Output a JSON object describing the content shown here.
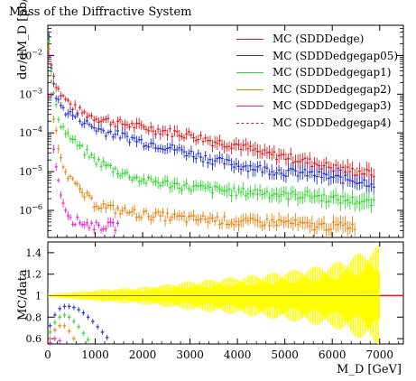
{
  "chart_data": [
    {
      "type": "scatter",
      "panel": "main",
      "title": "Mass of the Diffractive System",
      "ylabel": "dσ/dM_D [pb/GeV]",
      "xlabel": "",
      "xlim": [
        0,
        7500
      ],
      "ylim": [
        2e-07,
        0.06
      ],
      "yscale": "log",
      "yticks": [
        {
          "v": 0.01,
          "base": "10",
          "exp": "−2"
        },
        {
          "v": 0.001,
          "base": "10",
          "exp": "−3"
        },
        {
          "v": 0.0001,
          "base": "10",
          "exp": "−4"
        },
        {
          "v": 1e-05,
          "base": "10",
          "exp": "−5"
        },
        {
          "v": 1e-06,
          "base": "10",
          "exp": "−6"
        }
      ],
      "legend_position": "top-right",
      "series": [
        {
          "name": "MC (SDDDedge)",
          "color": "#e41a1c",
          "style": "solid",
          "x": [
            25,
            75,
            125,
            200,
            300,
            400,
            500,
            700,
            1000,
            1500,
            2000,
            2500,
            3000,
            3500,
            4000,
            4500,
            5000,
            5500,
            6000,
            6500,
            6900
          ],
          "y": [
            0.03,
            0.007,
            0.003,
            0.0015,
            0.0009,
            0.0007,
            0.0005,
            0.00035,
            0.00025,
            0.00018,
            0.00014,
            0.00011,
            9e-05,
            6e-05,
            5e-05,
            3e-05,
            2.5e-05,
            1.8e-05,
            1.3e-05,
            1e-05,
            9e-06
          ]
        },
        {
          "name": "MC (SDDDedgegap05)",
          "color": "#1f2ee0",
          "style": "solid",
          "x": [
            25,
            75,
            125,
            200,
            300,
            400,
            500,
            700,
            1000,
            1500,
            2000,
            2500,
            3000,
            3500,
            4000,
            4500,
            5000,
            5500,
            6000,
            6500,
            6900
          ],
          "y": [
            0.025,
            0.005,
            0.0018,
            0.0007,
            0.00045,
            0.00035,
            0.0003,
            0.00022,
            0.00013,
            9e-05,
            6e-05,
            4.5e-05,
            3e-05,
            2e-05,
            1.5e-05,
            1.2e-05,
            1e-05,
            9e-06,
            7e-06,
            6e-06,
            5e-06
          ]
        },
        {
          "name": "MC (SDDDedgegap1)",
          "color": "#2ed82e",
          "style": "solid",
          "x": [
            25,
            75,
            125,
            200,
            300,
            400,
            500,
            700,
            1000,
            1500,
            2000,
            2500,
            3000,
            3500,
            4000,
            4500,
            5000,
            5500,
            6000,
            6500,
            6900
          ],
          "y": [
            0.02,
            0.004,
            0.001,
            0.0003,
            0.00015,
            0.0001,
            7e-05,
            4e-05,
            2e-05,
            1e-05,
            6e-06,
            5e-06,
            4e-06,
            3.5e-06,
            3e-06,
            3e-06,
            2.5e-06,
            2.5e-06,
            2e-06,
            1.8e-06,
            1.5e-06
          ]
        },
        {
          "name": "MC (SDDDedgegap2)",
          "color": "#ef7f0a",
          "style": "solid",
          "x": [
            25,
            75,
            125,
            200,
            300,
            400,
            500,
            700,
            1000,
            1500,
            2000,
            2500,
            3000,
            3500,
            4000,
            4500,
            5000,
            5500,
            6000,
            6500
          ],
          "y": [
            0.015,
            0.002,
            0.0003,
            6e-05,
            2e-05,
            1e-05,
            6e-06,
            3e-06,
            1.5e-06,
            1e-06,
            8e-07,
            7e-07,
            6e-07,
            6e-07,
            5e-07,
            5e-07,
            5e-07,
            4e-07,
            4e-07,
            4e-07
          ]
        },
        {
          "name": "MC (SDDDedgegap3)",
          "color": "#ef1cd6",
          "style": "solid",
          "x": [
            25,
            75,
            125,
            200,
            300,
            400,
            500,
            700,
            1000,
            1500
          ],
          "y": [
            0.012,
            0.0008,
            5e-05,
            8e-06,
            2e-06,
            1e-06,
            6e-07,
            5e-07,
            4e-07,
            4e-07
          ]
        },
        {
          "name": "MC (SDDDedgegap4)",
          "color": "#e41a1c",
          "style": "dashed",
          "x": [],
          "y": []
        }
      ]
    },
    {
      "type": "scatter",
      "panel": "ratio",
      "ylabel": "MC/data",
      "xlabel": "M_D [GeV]",
      "xlim": [
        0,
        7500
      ],
      "ylim": [
        0.55,
        1.5
      ],
      "yticks": [
        1.4,
        1.2,
        1,
        0.8,
        0.6
      ],
      "ytick_labels": [
        "1.4",
        "1.2",
        "1",
        "0.8",
        "0.6"
      ],
      "xticks": [
        0,
        1000,
        2000,
        3000,
        4000,
        5000,
        6000,
        7000
      ],
      "xtick_labels": [
        "0",
        "1000",
        "2000",
        "3000",
        "4000",
        "5000",
        "6000",
        "7000"
      ],
      "band_color": "#ffff00",
      "band": {
        "x": [
          0,
          1000,
          2000,
          3000,
          4000,
          5000,
          6000,
          7000
        ],
        "halfwidth": [
          0.01,
          0.04,
          0.06,
          0.1,
          0.13,
          0.17,
          0.22,
          0.35
        ]
      },
      "series": [
        {
          "name": "MC (SDDDedge)",
          "color": "#e41a1c",
          "x": [
            7000,
            7500
          ],
          "y": [
            1,
            1
          ]
        },
        {
          "name": "MC (SDDDedgegap05)",
          "color": "#1f2ee0",
          "x": [
            50,
            150,
            250,
            350,
            450,
            550,
            650,
            750,
            850,
            950,
            1050,
            1150,
            1250
          ],
          "y": [
            0.72,
            0.82,
            0.88,
            0.9,
            0.9,
            0.89,
            0.87,
            0.84,
            0.8,
            0.76,
            0.71,
            0.66,
            0.61
          ]
        },
        {
          "name": "MC (SDDDedgegap1)",
          "color": "#2ed82e",
          "x": [
            50,
            150,
            250,
            350,
            450,
            550,
            650,
            750,
            850
          ],
          "y": [
            0.66,
            0.75,
            0.8,
            0.82,
            0.8,
            0.76,
            0.71,
            0.65,
            0.59
          ]
        },
        {
          "name": "MC (SDDDedgegap2)",
          "color": "#ef7f0a",
          "x": [
            50,
            150,
            250,
            350,
            450,
            550
          ],
          "y": [
            0.6,
            0.68,
            0.72,
            0.72,
            0.67,
            0.6
          ]
        },
        {
          "name": "MC (SDDDedgegap3)",
          "color": "#ef1cd6",
          "x": [
            50,
            150,
            250
          ],
          "y": [
            0.56,
            0.6,
            0.58
          ]
        }
      ]
    }
  ],
  "labels": {
    "ylabel_main": "dσ/dM_D [pb/GeV]",
    "ylabel_ratio": "MC/data",
    "xlabel": "M_D [GeV]"
  }
}
